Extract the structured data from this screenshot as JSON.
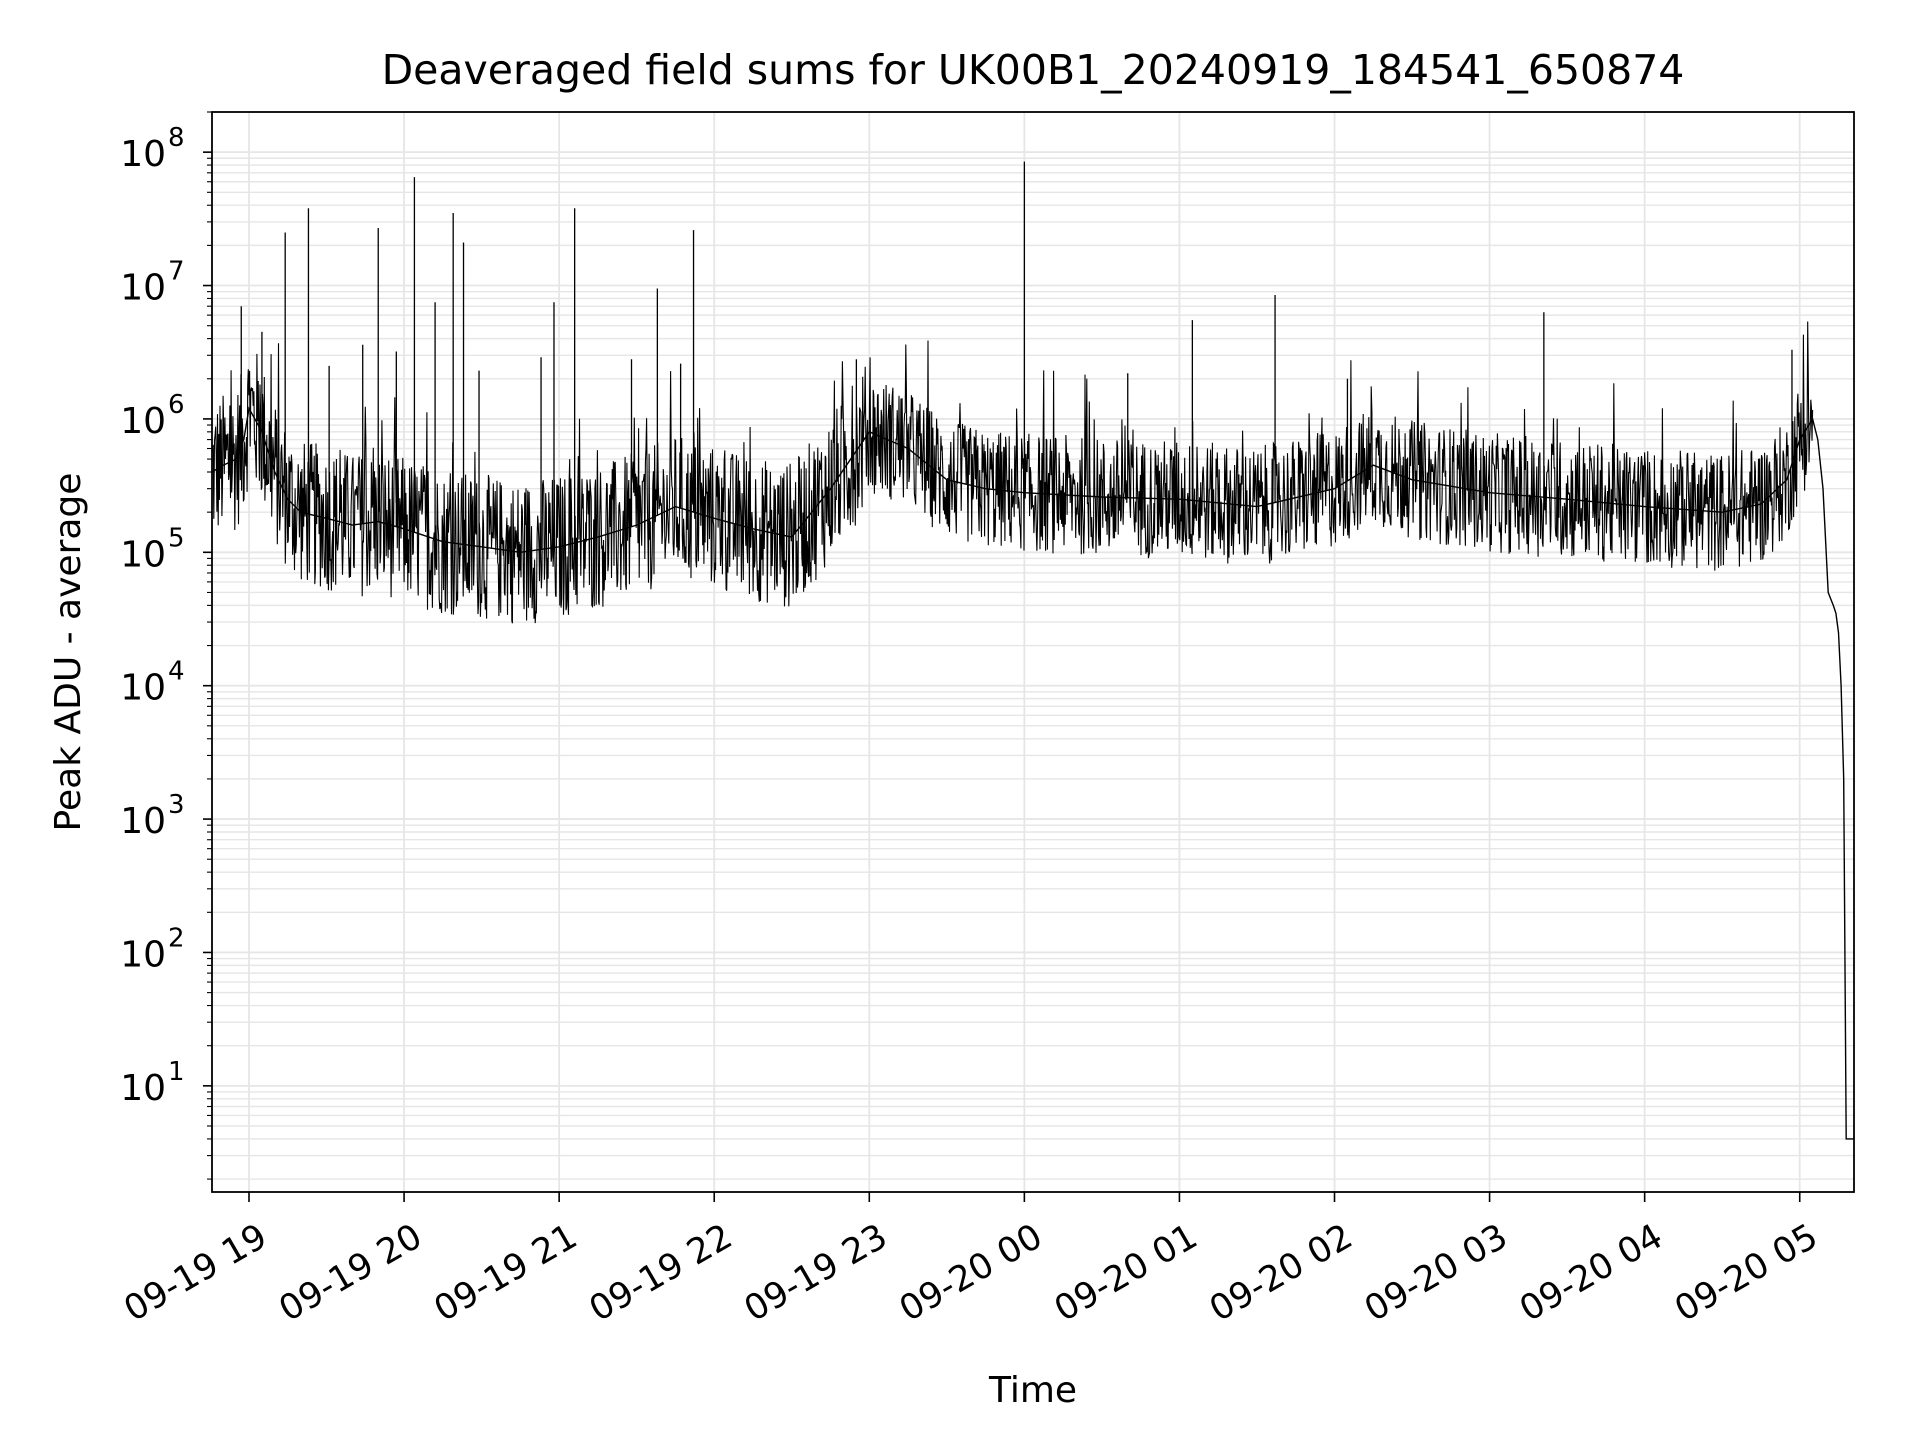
{
  "chart_data": {
    "type": "line",
    "title": "Deaveraged field sums for UK00B1_20240919_184541_650874",
    "xlabel": "Time",
    "ylabel": "Peak ADU - average",
    "yscale": "log",
    "ylim": [
      1.6,
      200000000
    ],
    "xlim": [
      "2024-09-19 18:45:41",
      "2024-09-20 05:21:00"
    ],
    "grid": true,
    "line_color": "#000000",
    "grid_color": "#e6e6e6",
    "x_ticks": [
      {
        "t": "2024-09-19 19:00",
        "label": "09-19 19"
      },
      {
        "t": "2024-09-19 20:00",
        "label": "09-19 20"
      },
      {
        "t": "2024-09-19 21:00",
        "label": "09-19 21"
      },
      {
        "t": "2024-09-19 22:00",
        "label": "09-19 22"
      },
      {
        "t": "2024-09-19 23:00",
        "label": "09-19 23"
      },
      {
        "t": "2024-09-20 00:00",
        "label": "09-20 00"
      },
      {
        "t": "2024-09-20 01:00",
        "label": "09-20 01"
      },
      {
        "t": "2024-09-20 02:00",
        "label": "09-20 02"
      },
      {
        "t": "2024-09-20 03:00",
        "label": "09-20 03"
      },
      {
        "t": "2024-09-20 04:00",
        "label": "09-20 04"
      },
      {
        "t": "2024-09-20 05:00",
        "label": "09-20 05"
      }
    ],
    "y_ticks": [
      {
        "value": 10,
        "base": "10",
        "exp": "1"
      },
      {
        "value": 100,
        "base": "10",
        "exp": "2"
      },
      {
        "value": 1000,
        "base": "10",
        "exp": "3"
      },
      {
        "value": 10000,
        "base": "10",
        "exp": "4"
      },
      {
        "value": 100000,
        "base": "10",
        "exp": "5"
      },
      {
        "value": 1000000,
        "base": "10",
        "exp": "6"
      },
      {
        "value": 10000000,
        "base": "10",
        "exp": "7"
      },
      {
        "value": 100000000,
        "base": "10",
        "exp": "8"
      }
    ],
    "series": [
      {
        "x": [
          "2024-09-19 18:45:41",
          "2024-09-19 18:50",
          "2024-09-19 18:55",
          "2024-09-19 18:58",
          "2024-09-19 19:00",
          "2024-09-19 19:05",
          "2024-09-19 19:10",
          "2024-09-19 19:15",
          "2024-09-19 19:20",
          "2024-09-19 19:30",
          "2024-09-19 19:40",
          "2024-09-19 19:50",
          "2024-09-19 20:00",
          "2024-09-19 20:15",
          "2024-09-19 20:30",
          "2024-09-19 20:45",
          "2024-09-19 21:00",
          "2024-09-19 21:15",
          "2024-09-19 21:30",
          "2024-09-19 21:45",
          "2024-09-19 22:00",
          "2024-09-19 22:15",
          "2024-09-19 22:30",
          "2024-09-19 22:45",
          "2024-09-19 23:00",
          "2024-09-19 23:15",
          "2024-09-19 23:30",
          "2024-09-19 23:45",
          "2024-09-20 00:00",
          "2024-09-20 00:30",
          "2024-09-20 01:00",
          "2024-09-20 01:30",
          "2024-09-20 02:00",
          "2024-09-20 02:15",
          "2024-09-20 02:30",
          "2024-09-20 03:00",
          "2024-09-20 03:30",
          "2024-09-20 04:00",
          "2024-09-20 04:30",
          "2024-09-20 04:45",
          "2024-09-20 04:55",
          "2024-09-20 05:00",
          "2024-09-20 05:05",
          "2024-09-20 05:07",
          "2024-09-20 05:09",
          "2024-09-20 05:11",
          "2024-09-20 05:13",
          "2024-09-20 05:14",
          "2024-09-20 05:15",
          "2024-09-20 05:16",
          "2024-09-20 05:17",
          "2024-09-20 05:18",
          "2024-09-20 05:19",
          "2024-09-20 05:20",
          "2024-09-20 05:21"
        ],
        "y": [
          400000,
          450000,
          500000,
          700000,
          1200000,
          800000,
          400000,
          250000,
          200000,
          180000,
          160000,
          170000,
          150000,
          120000,
          110000,
          100000,
          110000,
          130000,
          160000,
          220000,
          180000,
          150000,
          130000,
          300000,
          800000,
          600000,
          350000,
          300000,
          280000,
          260000,
          250000,
          220000,
          300000,
          450000,
          350000,
          280000,
          250000,
          220000,
          200000,
          230000,
          350000,
          700000,
          1000000,
          700000,
          300000,
          50000,
          40000,
          35000,
          25000,
          10000,
          2000,
          4,
          4,
          4,
          4
        ]
      }
    ],
    "spikes": [
      {
        "t": "2024-09-19 18:57",
        "y": 7000000
      },
      {
        "t": "2024-09-19 19:05",
        "y": 4500000
      },
      {
        "t": "2024-09-19 19:14",
        "y": 25000000
      },
      {
        "t": "2024-09-19 19:23",
        "y": 38000000
      },
      {
        "t": "2024-09-19 19:31",
        "y": 2500000
      },
      {
        "t": "2024-09-19 19:44",
        "y": 3600000
      },
      {
        "t": "2024-09-19 19:50",
        "y": 27000000
      },
      {
        "t": "2024-09-19 19:57",
        "y": 3200000
      },
      {
        "t": "2024-09-19 20:04",
        "y": 65000000
      },
      {
        "t": "2024-09-19 20:12",
        "y": 7500000
      },
      {
        "t": "2024-09-19 20:19",
        "y": 35000000
      },
      {
        "t": "2024-09-19 20:23",
        "y": 21000000
      },
      {
        "t": "2024-09-19 20:29",
        "y": 2300000
      },
      {
        "t": "2024-09-19 20:53",
        "y": 2900000
      },
      {
        "t": "2024-09-19 20:58",
        "y": 7500000
      },
      {
        "t": "2024-09-19 21:06",
        "y": 38000000
      },
      {
        "t": "2024-09-19 21:28",
        "y": 2800000
      },
      {
        "t": "2024-09-19 21:38",
        "y": 9500000
      },
      {
        "t": "2024-09-19 21:47",
        "y": 2600000
      },
      {
        "t": "2024-09-19 21:52",
        "y": 26000000
      },
      {
        "t": "2024-09-19 22:55",
        "y": 2800000
      },
      {
        "t": "2024-09-20 00:00",
        "y": 85000000
      },
      {
        "t": "2024-09-20 00:40",
        "y": 2200000
      },
      {
        "t": "2024-09-20 01:05",
        "y": 5500000
      },
      {
        "t": "2024-09-20 01:37",
        "y": 8500000
      },
      {
        "t": "2024-09-20 02:05",
        "y": 2000000
      },
      {
        "t": "2024-09-20 03:21",
        "y": 6300000
      },
      {
        "t": "2024-09-20 04:57",
        "y": 3300000
      }
    ]
  }
}
